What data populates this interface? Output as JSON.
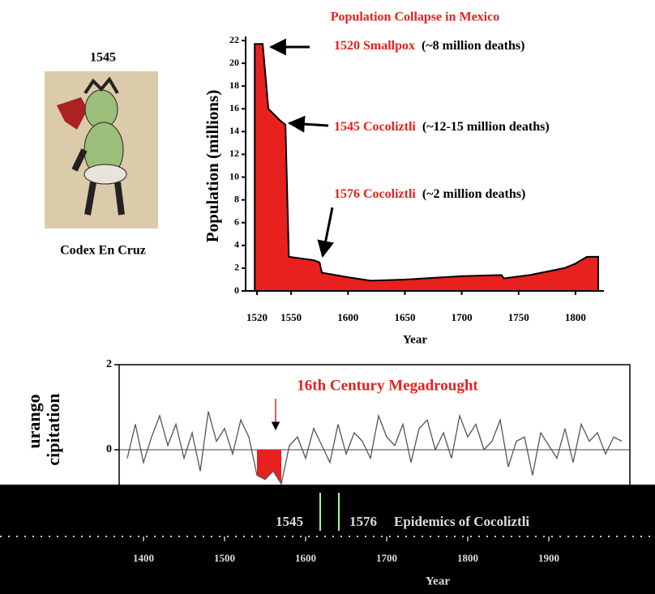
{
  "codex": {
    "label": "1545",
    "caption": "Codex En Cruz"
  },
  "chart_data": [
    {
      "type": "area",
      "title": "Population Collapse in Mexico",
      "ylabel": "Population (millions)",
      "xlabel": "Year",
      "x": [
        1518,
        1525,
        1530,
        1540,
        1545,
        1548,
        1570,
        1575,
        1577,
        1600,
        1620,
        1650,
        1700,
        1735,
        1737,
        1760,
        1790,
        1800,
        1810,
        1820
      ],
      "values": [
        21.7,
        21.7,
        16,
        15,
        14.6,
        3,
        2.7,
        2.5,
        1.6,
        1.2,
        0.9,
        1.0,
        1.3,
        1.4,
        1.1,
        1.4,
        2.0,
        2.4,
        3.0,
        3.0
      ],
      "color": "#e8201e",
      "xlim": [
        1510,
        1825
      ],
      "xticks": [
        1520,
        1550,
        1600,
        1650,
        1700,
        1750,
        1800
      ],
      "ylim": [
        0,
        22
      ],
      "yticks": [
        0,
        2,
        4,
        6,
        8,
        10,
        12,
        14,
        16,
        18,
        20,
        22
      ],
      "annotations": [
        {
          "label": "1520  Smallpox",
          "note": "(~8 million deaths)"
        },
        {
          "label": "1545  Cocoliztli",
          "note": "(~12-15 million deaths)"
        },
        {
          "label": "1576  Cocoliztli",
          "note": "(~2 million deaths)"
        }
      ]
    },
    {
      "type": "line",
      "title": "16th Century Megadrought",
      "ylabel": [
        "urango",
        "cipitation"
      ],
      "xlabel": "Year",
      "x": [
        1315,
        1325,
        1335,
        1345,
        1355,
        1365,
        1375,
        1385,
        1395,
        1405,
        1415,
        1425,
        1435,
        1445,
        1455,
        1465,
        1475,
        1485,
        1495,
        1505,
        1515,
        1525,
        1535,
        1545,
        1555,
        1565,
        1575,
        1585,
        1595,
        1605,
        1615,
        1625,
        1635,
        1645,
        1655,
        1665,
        1675,
        1685,
        1695,
        1705,
        1715,
        1725,
        1735,
        1745,
        1755,
        1765,
        1775,
        1785,
        1795,
        1805,
        1815,
        1825,
        1835,
        1845,
        1855,
        1865,
        1875,
        1885,
        1895,
        1905,
        1915,
        1925
      ],
      "values": [
        -0.2,
        0.6,
        -0.3,
        0.3,
        0.8,
        0.1,
        0.6,
        -0.2,
        0.4,
        -0.5,
        0.9,
        0.2,
        0.5,
        -0.1,
        0.7,
        0.3,
        -0.6,
        -0.7,
        -0.5,
        -0.8,
        0.1,
        0.3,
        -0.2,
        0.5,
        0.1,
        -0.3,
        0.6,
        -0.1,
        0.4,
        0.2,
        -0.2,
        0.8,
        0.3,
        0.1,
        0.6,
        -0.3,
        0.5,
        0.7,
        0.0,
        0.4,
        -0.2,
        0.8,
        0.3,
        0.6,
        0.0,
        0.2,
        0.7,
        -0.4,
        0.2,
        0.3,
        -0.6,
        0.4,
        0.1,
        -0.2,
        0.5,
        -0.3,
        0.6,
        0.2,
        0.4,
        -0.1,
        0.3,
        0.2
      ],
      "color": "#555555",
      "reference_line": 0,
      "highlight": {
        "xrange": [
          1475,
          1505
        ],
        "color": "#e8201e"
      },
      "xlim": [
        1305,
        1935
      ],
      "xticks": [
        1400,
        1500,
        1600,
        1700,
        1800,
        1900
      ],
      "ylim": [
        -2,
        2
      ],
      "yticks": [
        0,
        2
      ],
      "annotations": [
        "1545",
        "1576",
        "Epidemics of Cocoliztli"
      ]
    }
  ]
}
